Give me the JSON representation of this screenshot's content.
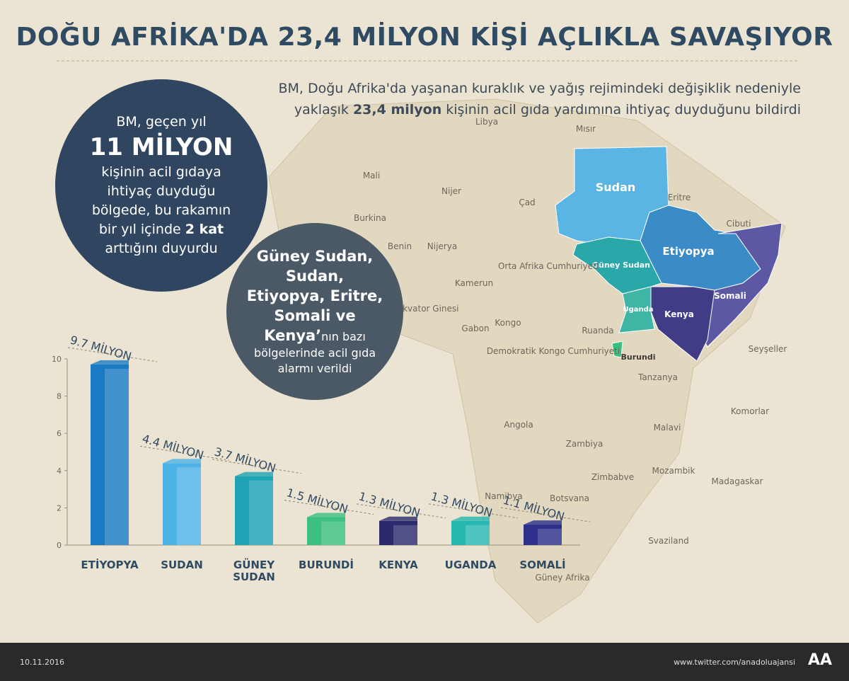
{
  "title": "DOĞU AFRİKA'DA 23,4 MİLYON KİŞİ AÇLIKLA SAVAŞIYOR",
  "subtitle": [
    "BM, Doğu Afrika'da yaşanan kuraklık ve yağış rejimindeki değişiklik nedeniyle yaklaşık ",
    "23,4 milyon",
    " kişinin acil gıda yardımına ihtiyaç duyduğunu bildirdi"
  ],
  "circle_1": [
    "BM, geçen yıl",
    "11 MİLYON",
    "kişinin acil gıdaya ihtiyaç duyduğu bölgede, bu rakamın bir yıl içinde ",
    "2 kat",
    " arttığını duyurdu"
  ],
  "circle_2": [
    "Güney Sudan, Sudan, Etiyopya, Eritre, Somali ve Kenya’",
    "nın bazı bölgelerinde acil gıda alarmı verildi"
  ],
  "map": {
    "highlighted": [
      "Sudan",
      "Güney Sudan",
      "Etiyopya",
      "Somali",
      "Kenya",
      "Uganda",
      "Burundi"
    ],
    "others": [
      "Libya",
      "Mısır",
      "Mali",
      "Nijer",
      "Çad",
      "Eritre",
      "Cibuti",
      "Burkina",
      "Benin",
      "Nijerya",
      "Orta Afrika Cumhuriyeti",
      "Kamerun",
      "Ekvator Ginesi",
      "Gabon",
      "Kongo",
      "Ruanda",
      "Demokratik Kongo Cumhuriyeti",
      "Tanzanya",
      "Seyşeller",
      "Komorlar",
      "Angola",
      "Malavi",
      "Zambiya",
      "Mozambik",
      "Zimbabve",
      "Madagaskar",
      "Namibya",
      "Botsvana",
      "Svaziland",
      "Güney Afrika"
    ]
  },
  "chart_data": {
    "type": "bar",
    "categories": [
      "ETİYOPYA",
      "SUDAN",
      "GÜNEY SUDAN",
      "BURUNDİ",
      "KENYA",
      "UGANDA",
      "SOMALİ"
    ],
    "values": [
      9.7,
      4.4,
      3.7,
      1.5,
      1.3,
      1.3,
      1.1
    ],
    "value_labels": [
      "9.7 MİLYON",
      "4.4 MİLYON",
      "3.7 MİLYON",
      "1.5 MİLYON",
      "1.3 MİLYON",
      "1.3 MİLYON",
      "1.1 MİLYON"
    ],
    "colors": [
      "#1a7bc4",
      "#4db3e6",
      "#1ea3b5",
      "#3bc07f",
      "#2b2a6e",
      "#26b7b0",
      "#2d2f8a"
    ],
    "ylim": [
      0,
      10
    ],
    "yticks": [
      0,
      2,
      4,
      6,
      8,
      10
    ]
  },
  "footer": {
    "date": "10.11.2016",
    "link": "www.twitter.com/anadoluajansi",
    "logo": "AA"
  }
}
